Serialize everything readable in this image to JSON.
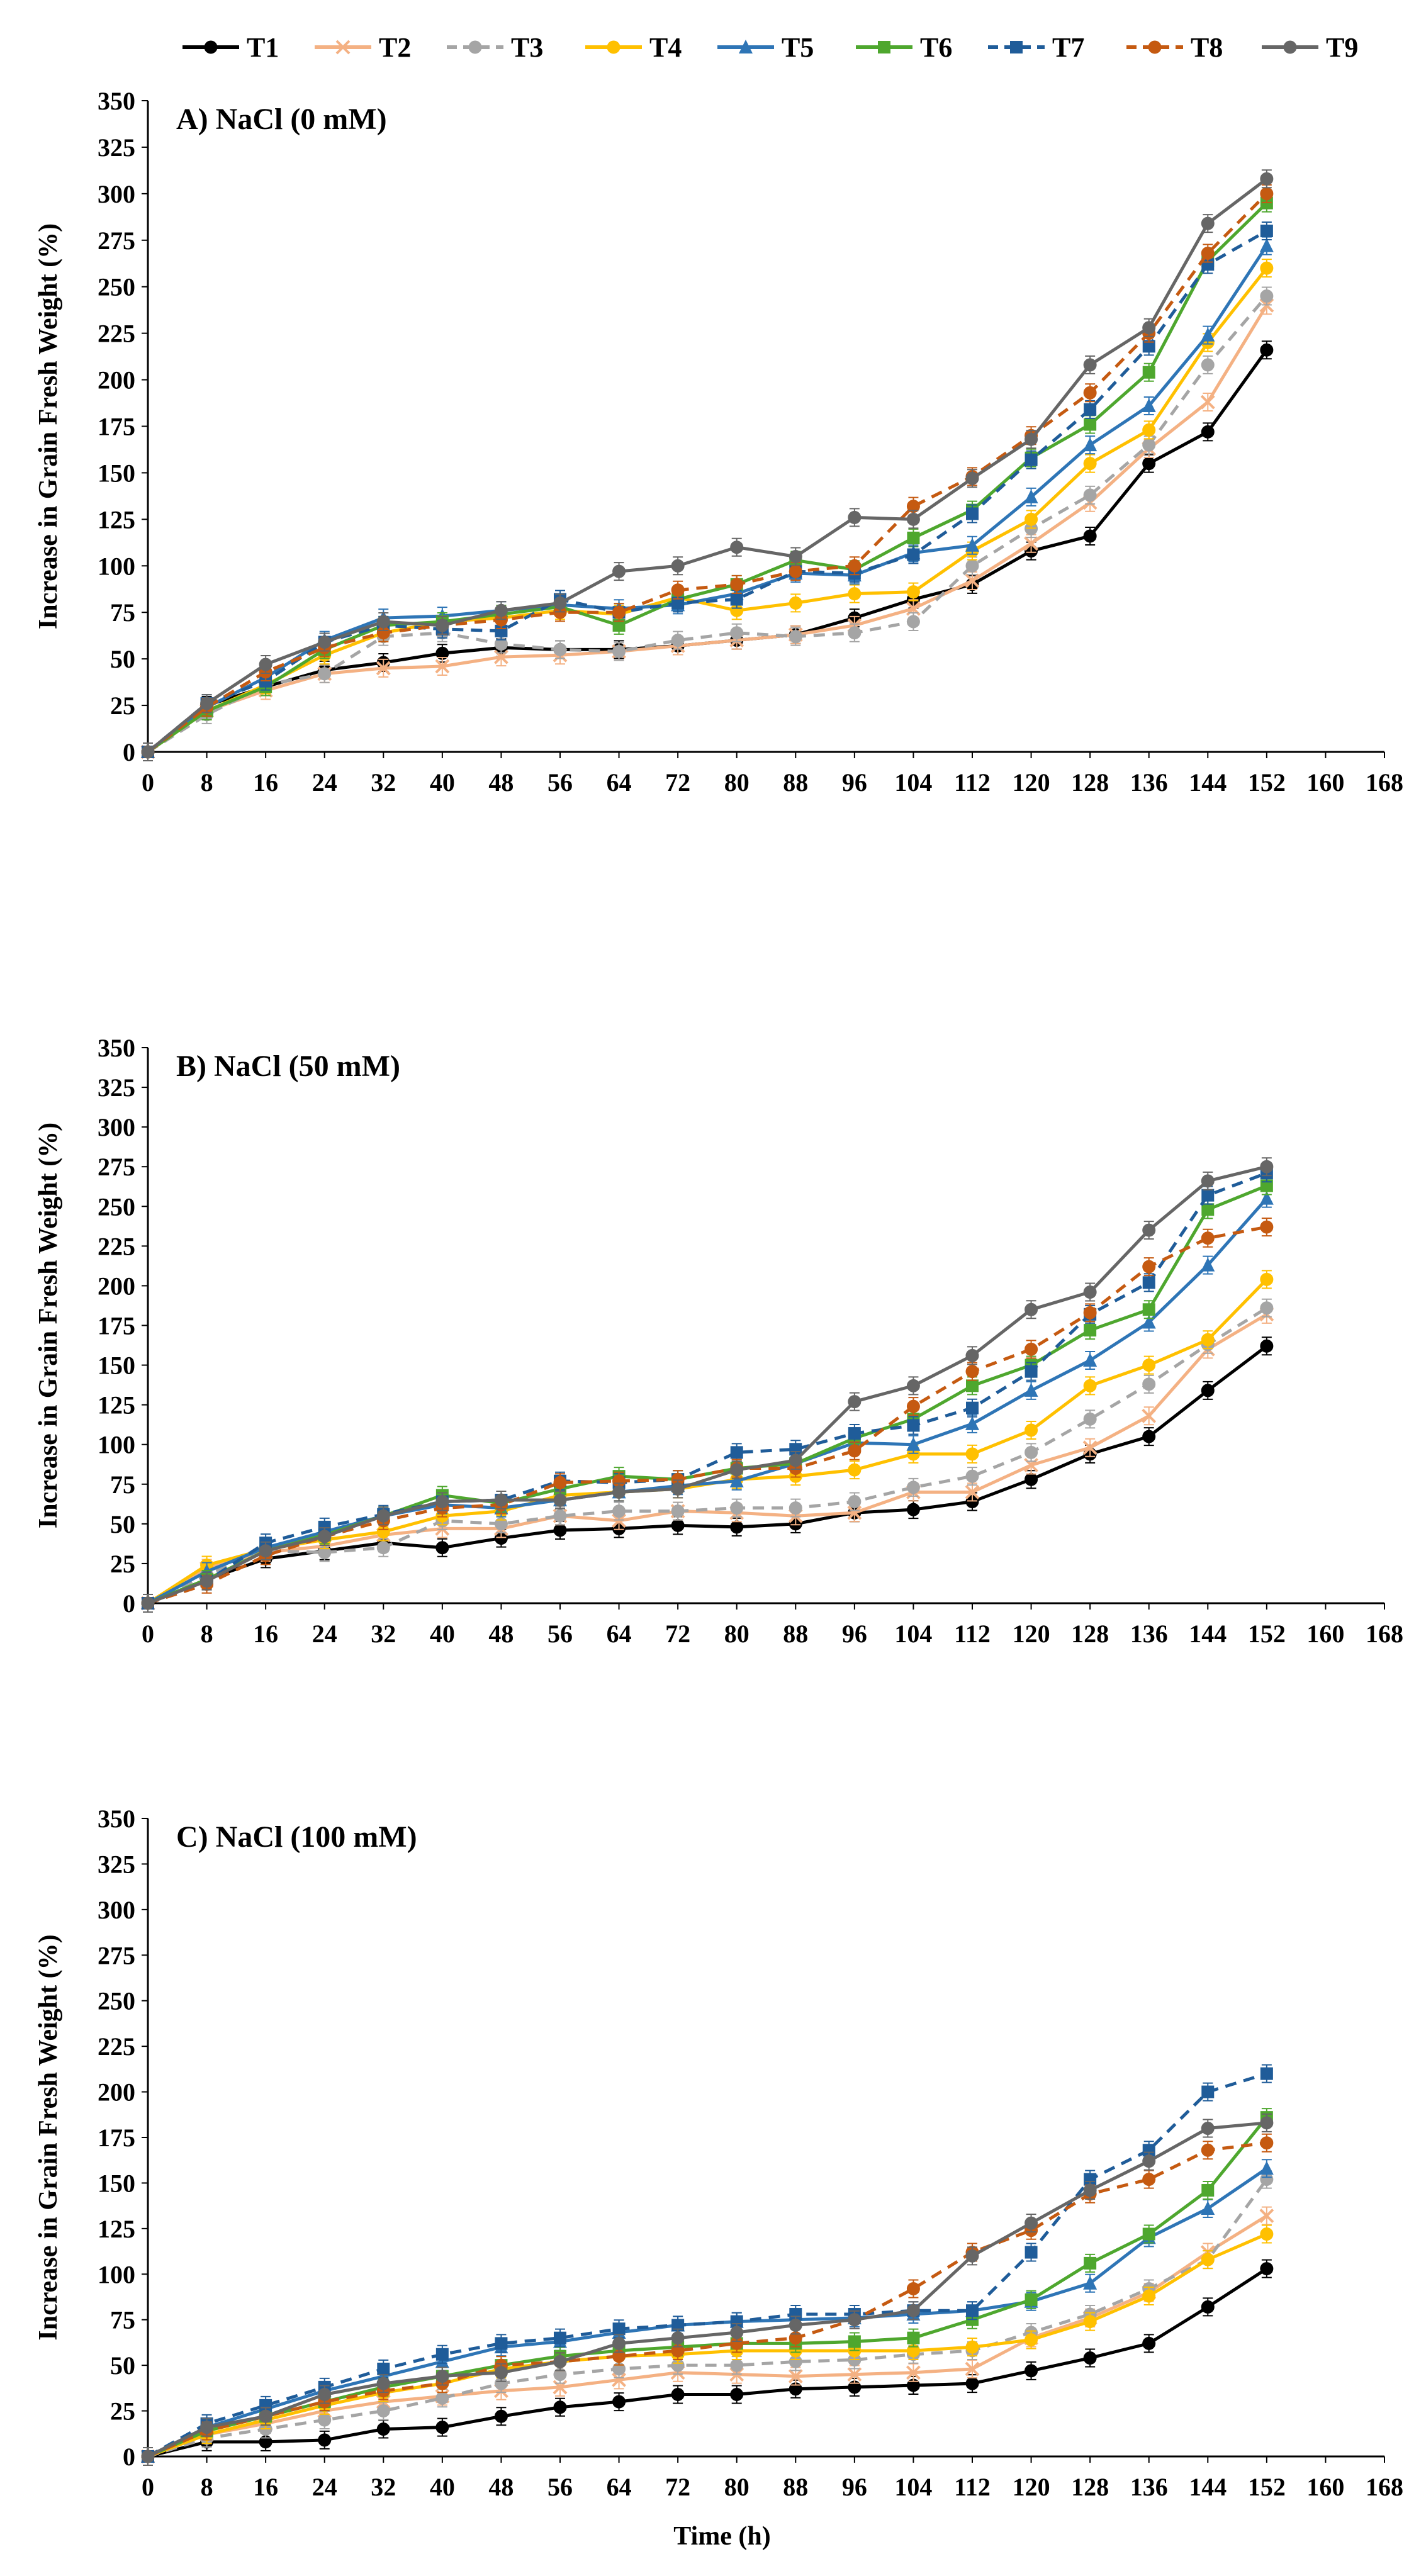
{
  "legend": [
    "T1",
    "T2",
    "T3",
    "T4",
    "T5",
    "T6",
    "T7",
    "T8",
    "T9"
  ],
  "series_styles": [
    {
      "name": "T1",
      "color": "#000000",
      "marker": "circle",
      "dash": "solid"
    },
    {
      "name": "T2",
      "color": "#F4B183",
      "marker": "x",
      "dash": "solid"
    },
    {
      "name": "T3",
      "color": "#A5A5A5",
      "marker": "circle",
      "dash": "dashed"
    },
    {
      "name": "T4",
      "color": "#FFC000",
      "marker": "circle",
      "dash": "solid"
    },
    {
      "name": "T5",
      "color": "#2E75B6",
      "marker": "triangle",
      "dash": "solid"
    },
    {
      "name": "T6",
      "color": "#4EA72E",
      "marker": "square",
      "dash": "solid"
    },
    {
      "name": "T7",
      "color": "#1F5C99",
      "marker": "square",
      "dash": "dashed"
    },
    {
      "name": "T8",
      "color": "#C55A11",
      "marker": "circle",
      "dash": "dashed"
    },
    {
      "name": "T9",
      "color": "#666666",
      "marker": "circle",
      "dash": "solid"
    }
  ],
  "chart_data": [
    {
      "type": "line",
      "title": "A) NaCl (0 mM)",
      "xlabel": "",
      "ylabel": "Increase in Grain Fresh Weight (%)",
      "x_ticks": [
        0,
        8,
        16,
        24,
        32,
        40,
        48,
        56,
        64,
        72,
        80,
        88,
        96,
        104,
        112,
        120,
        128,
        136,
        144,
        152,
        160,
        168
      ],
      "y_ticks": [
        0,
        25,
        50,
        75,
        100,
        125,
        150,
        175,
        200,
        225,
        250,
        275,
        300,
        325,
        350
      ],
      "xlim": [
        0,
        168
      ],
      "ylim": [
        0,
        350
      ],
      "x": [
        0,
        8,
        16,
        24,
        32,
        40,
        48,
        56,
        64,
        72,
        80,
        88,
        96,
        104,
        112,
        120,
        128,
        136,
        144,
        152
      ],
      "series": [
        {
          "name": "T1",
          "values": [
            0,
            25,
            35,
            44,
            48,
            53,
            56,
            55,
            55,
            57,
            60,
            63,
            72,
            82,
            90,
            108,
            116,
            155,
            172,
            216
          ]
        },
        {
          "name": "T2",
          "values": [
            0,
            22,
            33,
            42,
            45,
            46,
            51,
            52,
            54,
            57,
            60,
            63,
            68,
            77,
            92,
            112,
            134,
            163,
            188,
            240
          ]
        },
        {
          "name": "T3",
          "values": [
            0,
            20,
            36,
            42,
            62,
            64,
            58,
            55,
            54,
            60,
            64,
            62,
            64,
            70,
            100,
            120,
            138,
            165,
            208,
            245
          ]
        },
        {
          "name": "T4",
          "values": [
            0,
            22,
            36,
            52,
            64,
            70,
            72,
            76,
            74,
            83,
            76,
            80,
            85,
            86,
            108,
            125,
            155,
            173,
            220,
            260
          ]
        },
        {
          "name": "T5",
          "values": [
            0,
            24,
            40,
            60,
            72,
            73,
            76,
            79,
            77,
            79,
            85,
            96,
            95,
            107,
            111,
            137,
            165,
            186,
            224,
            272
          ]
        },
        {
          "name": "T6",
          "values": [
            0,
            22,
            35,
            55,
            68,
            70,
            74,
            78,
            68,
            82,
            90,
            103,
            98,
            115,
            130,
            158,
            176,
            204,
            264,
            295
          ]
        },
        {
          "name": "T7",
          "values": [
            0,
            26,
            38,
            59,
            68,
            66,
            65,
            82,
            75,
            80,
            82,
            97,
            96,
            106,
            128,
            157,
            184,
            218,
            262,
            280
          ]
        },
        {
          "name": "T8",
          "values": [
            0,
            24,
            43,
            56,
            64,
            68,
            71,
            75,
            75,
            87,
            90,
            97,
            100,
            132,
            148,
            170,
            193,
            225,
            268,
            300
          ]
        },
        {
          "name": "T9",
          "values": [
            0,
            26,
            47,
            59,
            70,
            68,
            76,
            80,
            97,
            100,
            110,
            105,
            126,
            125,
            147,
            168,
            208,
            228,
            284,
            308
          ]
        }
      ]
    },
    {
      "type": "line",
      "title": "B) NaCl (50 mM)",
      "xlabel": "",
      "ylabel": "Increase in Grain Fresh Weight (%)",
      "x_ticks": [
        0,
        8,
        16,
        24,
        32,
        40,
        48,
        56,
        64,
        72,
        80,
        88,
        96,
        104,
        112,
        120,
        128,
        136,
        144,
        152,
        160,
        168
      ],
      "y_ticks": [
        0,
        25,
        50,
        75,
        100,
        125,
        150,
        175,
        200,
        225,
        250,
        275,
        300,
        325,
        350
      ],
      "xlim": [
        0,
        168
      ],
      "ylim": [
        0,
        350
      ],
      "x": [
        0,
        8,
        16,
        24,
        32,
        40,
        48,
        56,
        64,
        72,
        80,
        88,
        96,
        104,
        112,
        120,
        128,
        136,
        144,
        152
      ],
      "series": [
        {
          "name": "T1",
          "values": [
            0,
            15,
            28,
            33,
            38,
            35,
            41,
            46,
            47,
            49,
            48,
            50,
            57,
            59,
            64,
            78,
            94,
            105,
            134,
            162
          ]
        },
        {
          "name": "T2",
          "values": [
            0,
            22,
            32,
            36,
            43,
            47,
            47,
            55,
            52,
            58,
            57,
            55,
            57,
            70,
            70,
            87,
            98,
            118,
            160,
            182
          ]
        },
        {
          "name": "T3",
          "values": [
            0,
            18,
            33,
            32,
            35,
            52,
            50,
            55,
            58,
            58,
            60,
            60,
            64,
            73,
            80,
            95,
            116,
            138,
            163,
            186
          ]
        },
        {
          "name": "T4",
          "values": [
            0,
            24,
            34,
            40,
            45,
            55,
            58,
            68,
            70,
            72,
            78,
            80,
            84,
            94,
            94,
            109,
            137,
            150,
            166,
            204
          ]
        },
        {
          "name": "T5",
          "values": [
            0,
            20,
            35,
            45,
            55,
            62,
            60,
            65,
            70,
            74,
            77,
            88,
            101,
            100,
            113,
            134,
            153,
            177,
            213,
            255
          ]
        },
        {
          "name": "T6",
          "values": [
            0,
            15,
            33,
            43,
            55,
            68,
            63,
            72,
            80,
            78,
            85,
            88,
            104,
            116,
            137,
            150,
            172,
            185,
            248,
            263
          ]
        },
        {
          "name": "T7",
          "values": [
            0,
            14,
            38,
            48,
            56,
            64,
            65,
            77,
            76,
            78,
            95,
            97,
            107,
            112,
            123,
            146,
            182,
            202,
            257,
            271
          ]
        },
        {
          "name": "T8",
          "values": [
            0,
            12,
            30,
            42,
            52,
            60,
            62,
            76,
            77,
            78,
            85,
            85,
            96,
            124,
            146,
            160,
            183,
            212,
            230,
            237
          ]
        },
        {
          "name": "T9",
          "values": [
            0,
            14,
            33,
            42,
            55,
            64,
            65,
            65,
            70,
            72,
            84,
            90,
            127,
            137,
            156,
            185,
            196,
            235,
            266,
            275
          ]
        }
      ]
    },
    {
      "type": "line",
      "title": "C) NaCl (100 mM)",
      "xlabel": "Time (h)",
      "ylabel": "Increase in Grain Fresh Weight (%)",
      "x_ticks": [
        0,
        8,
        16,
        24,
        32,
        40,
        48,
        56,
        64,
        72,
        80,
        88,
        96,
        104,
        112,
        120,
        128,
        136,
        144,
        152,
        160,
        168
      ],
      "y_ticks": [
        0,
        25,
        50,
        75,
        100,
        125,
        150,
        175,
        200,
        225,
        250,
        275,
        300,
        325,
        350
      ],
      "xlim": [
        0,
        168
      ],
      "ylim": [
        0,
        350
      ],
      "x": [
        0,
        8,
        16,
        24,
        32,
        40,
        48,
        56,
        64,
        72,
        80,
        88,
        96,
        104,
        112,
        120,
        128,
        136,
        144,
        152
      ],
      "series": [
        {
          "name": "T1",
          "values": [
            0,
            8,
            8,
            9,
            15,
            16,
            22,
            27,
            30,
            34,
            34,
            37,
            38,
            39,
            40,
            47,
            54,
            62,
            82,
            103
          ]
        },
        {
          "name": "T2",
          "values": [
            0,
            12,
            18,
            25,
            30,
            33,
            36,
            38,
            42,
            46,
            45,
            44,
            45,
            46,
            48,
            65,
            76,
            90,
            112,
            132
          ]
        },
        {
          "name": "T3",
          "values": [
            0,
            10,
            15,
            20,
            25,
            32,
            40,
            45,
            48,
            50,
            50,
            52,
            53,
            56,
            58,
            68,
            78,
            92,
            108,
            152
          ]
        },
        {
          "name": "T4",
          "values": [
            0,
            12,
            20,
            28,
            35,
            40,
            48,
            52,
            55,
            56,
            58,
            58,
            58,
            58,
            60,
            64,
            74,
            88,
            108,
            122
          ]
        },
        {
          "name": "T5",
          "values": [
            0,
            16,
            26,
            36,
            44,
            52,
            60,
            63,
            68,
            72,
            74,
            75,
            76,
            78,
            80,
            85,
            95,
            120,
            136,
            158
          ]
        },
        {
          "name": "T6",
          "values": [
            0,
            14,
            22,
            30,
            38,
            44,
            50,
            55,
            58,
            60,
            62,
            62,
            63,
            65,
            75,
            86,
            106,
            122,
            146,
            186
          ]
        },
        {
          "name": "T7",
          "values": [
            0,
            18,
            28,
            38,
            48,
            56,
            62,
            65,
            70,
            72,
            74,
            78,
            78,
            80,
            80,
            112,
            152,
            168,
            200,
            210
          ]
        },
        {
          "name": "T8",
          "values": [
            0,
            14,
            22,
            30,
            36,
            40,
            50,
            52,
            55,
            58,
            62,
            65,
            75,
            92,
            112,
            124,
            144,
            152,
            168,
            172
          ]
        },
        {
          "name": "T9",
          "values": [
            0,
            16,
            22,
            34,
            40,
            44,
            46,
            52,
            62,
            65,
            68,
            72,
            75,
            80,
            110,
            128,
            146,
            162,
            180,
            183
          ]
        }
      ]
    }
  ]
}
